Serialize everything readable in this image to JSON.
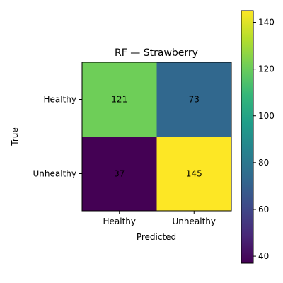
{
  "chart_data": {
    "type": "heatmap",
    "title": "RF — Strawberry",
    "xlabel": "Predicted",
    "ylabel": "True",
    "x_categories": [
      "Healthy",
      "Unhealthy"
    ],
    "y_categories": [
      "Healthy",
      "Unhealthy"
    ],
    "values": [
      [
        121,
        73
      ],
      [
        37,
        145
      ]
    ],
    "colormap": "viridis",
    "color_range": [
      37,
      145
    ],
    "colorbar_ticks": [
      40,
      60,
      80,
      100,
      120,
      140
    ],
    "grid": false
  },
  "colors": {
    "viridis": [
      "#440154",
      "#482878",
      "#3e4989",
      "#31688e",
      "#26828e",
      "#1f9e89",
      "#35b779",
      "#6ece58",
      "#b5de2b",
      "#fde725"
    ]
  }
}
